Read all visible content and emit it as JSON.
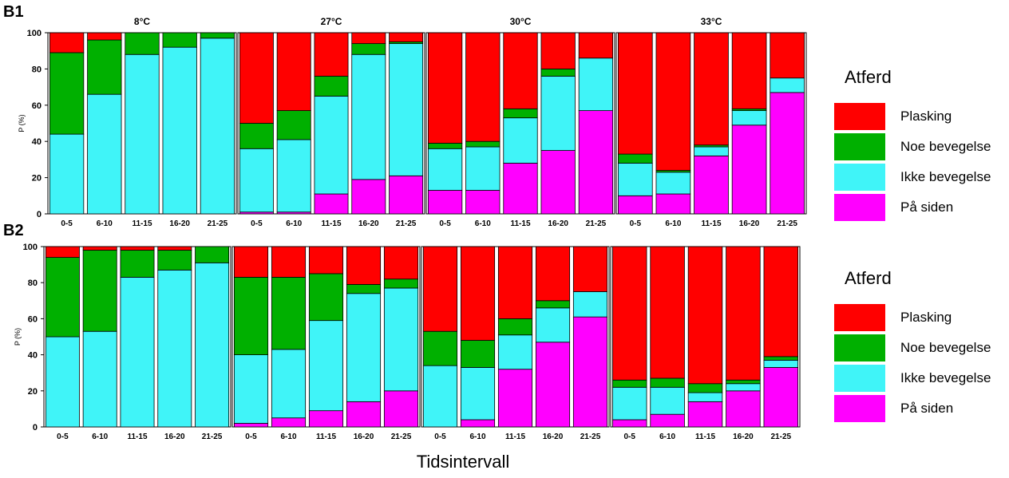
{
  "colors": {
    "Plasking": "#ff0000",
    "Noe bevegelse": "#00b000",
    "Ikke bevegelse": "#40f4f8",
    "På siden": "#ff00ff"
  },
  "xlabel": "Tidsintervall",
  "legend_title": "Atferd",
  "legend_items": [
    "Plasking",
    "Noe bevegelse",
    "Ikke bevegelse",
    "På siden"
  ],
  "chart_data": [
    {
      "type": "bar",
      "stacked": true,
      "row": "B1",
      "title": "8°C",
      "ylabel": "P (%)",
      "ylim": [
        0,
        100
      ],
      "categories": [
        "0-5",
        "6-10",
        "11-15",
        "16-20",
        "21-25"
      ],
      "series": [
        {
          "name": "På siden",
          "values": [
            0,
            0,
            0,
            0,
            0
          ]
        },
        {
          "name": "Ikke bevegelse",
          "values": [
            44,
            66,
            88,
            92,
            97
          ]
        },
        {
          "name": "Noe bevegelse",
          "values": [
            45,
            30,
            12,
            8,
            3
          ]
        },
        {
          "name": "Plasking",
          "values": [
            11,
            4,
            0,
            0,
            0
          ]
        }
      ]
    },
    {
      "type": "bar",
      "stacked": true,
      "row": "B1",
      "title": "27°C",
      "ylim": [
        0,
        100
      ],
      "categories": [
        "0-5",
        "6-10",
        "11-15",
        "16-20",
        "21-25"
      ],
      "series": [
        {
          "name": "På siden",
          "values": [
            1,
            1,
            11,
            19,
            21
          ]
        },
        {
          "name": "Ikke bevegelse",
          "values": [
            35,
            40,
            54,
            69,
            73
          ]
        },
        {
          "name": "Noe bevegelse",
          "values": [
            14,
            16,
            11,
            6,
            1
          ]
        },
        {
          "name": "Plasking",
          "values": [
            50,
            43,
            24,
            6,
            5
          ]
        }
      ]
    },
    {
      "type": "bar",
      "stacked": true,
      "row": "B1",
      "title": "30°C",
      "ylim": [
        0,
        100
      ],
      "categories": [
        "0-5",
        "6-10",
        "11-15",
        "16-20",
        "21-25"
      ],
      "series": [
        {
          "name": "På siden",
          "values": [
            13,
            13,
            28,
            35,
            57
          ]
        },
        {
          "name": "Ikke bevegelse",
          "values": [
            23,
            24,
            25,
            41,
            29
          ]
        },
        {
          "name": "Noe bevegelse",
          "values": [
            3,
            3,
            5,
            4,
            0
          ]
        },
        {
          "name": "Plasking",
          "values": [
            61,
            60,
            42,
            20,
            14
          ]
        }
      ]
    },
    {
      "type": "bar",
      "stacked": true,
      "row": "B1",
      "title": "33°C",
      "ylim": [
        0,
        100
      ],
      "categories": [
        "0-5",
        "6-10",
        "11-15",
        "16-20",
        "21-25"
      ],
      "series": [
        {
          "name": "På siden",
          "values": [
            10,
            11,
            32,
            49,
            67
          ]
        },
        {
          "name": "Ikke bevegelse",
          "values": [
            18,
            12,
            5,
            8,
            8
          ]
        },
        {
          "name": "Noe bevegelse",
          "values": [
            5,
            1,
            1,
            1,
            0
          ]
        },
        {
          "name": "Plasking",
          "values": [
            67,
            76,
            62,
            42,
            25
          ]
        }
      ]
    },
    {
      "type": "bar",
      "stacked": true,
      "row": "B2",
      "ylabel": "P (%)",
      "ylim": [
        0,
        100
      ],
      "categories": [
        "0-5",
        "6-10",
        "11-15",
        "16-20",
        "21-25"
      ],
      "series": [
        {
          "name": "På siden",
          "values": [
            0,
            0,
            0,
            0,
            0
          ]
        },
        {
          "name": "Ikke bevegelse",
          "values": [
            50,
            53,
            83,
            87,
            91
          ]
        },
        {
          "name": "Noe bevegelse",
          "values": [
            44,
            45,
            15,
            11,
            9
          ]
        },
        {
          "name": "Plasking",
          "values": [
            6,
            2,
            2,
            2,
            0
          ]
        }
      ]
    },
    {
      "type": "bar",
      "stacked": true,
      "row": "B2",
      "ylim": [
        0,
        100
      ],
      "categories": [
        "0-5",
        "6-10",
        "11-15",
        "16-20",
        "21-25"
      ],
      "series": [
        {
          "name": "På siden",
          "values": [
            2,
            5,
            9,
            14,
            20
          ]
        },
        {
          "name": "Ikke bevegelse",
          "values": [
            38,
            38,
            50,
            60,
            57
          ]
        },
        {
          "name": "Noe bevegelse",
          "values": [
            43,
            40,
            26,
            5,
            5
          ]
        },
        {
          "name": "Plasking",
          "values": [
            17,
            17,
            15,
            21,
            18
          ]
        }
      ]
    },
    {
      "type": "bar",
      "stacked": true,
      "row": "B2",
      "ylim": [
        0,
        100
      ],
      "categories": [
        "0-5",
        "6-10",
        "11-15",
        "16-20",
        "21-25"
      ],
      "series": [
        {
          "name": "På siden",
          "values": [
            0,
            4,
            32,
            47,
            61
          ]
        },
        {
          "name": "Ikke bevegelse",
          "values": [
            34,
            29,
            19,
            19,
            14
          ]
        },
        {
          "name": "Noe bevegelse",
          "values": [
            19,
            15,
            9,
            4,
            0
          ]
        },
        {
          "name": "Plasking",
          "values": [
            47,
            52,
            40,
            30,
            25
          ]
        }
      ]
    },
    {
      "type": "bar",
      "stacked": true,
      "row": "B2",
      "ylim": [
        0,
        100
      ],
      "categories": [
        "0-5",
        "6-10",
        "11-15",
        "16-20",
        "21-25"
      ],
      "series": [
        {
          "name": "På siden",
          "values": [
            4,
            7,
            14,
            20,
            33
          ]
        },
        {
          "name": "Ikke bevegelse",
          "values": [
            18,
            15,
            5,
            4,
            4
          ]
        },
        {
          "name": "Noe bevegelse",
          "values": [
            4,
            5,
            5,
            2,
            2
          ]
        },
        {
          "name": "Plasking",
          "values": [
            74,
            73,
            76,
            74,
            61
          ]
        }
      ]
    }
  ],
  "yticks": [
    0,
    20,
    40,
    60,
    80,
    100
  ]
}
